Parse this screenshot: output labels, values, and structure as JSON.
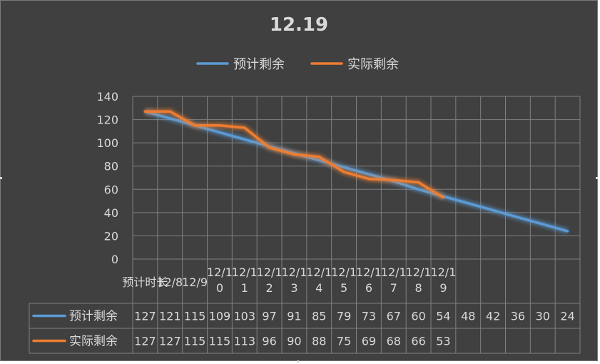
{
  "chart_data": {
    "type": "line",
    "title": "12.19",
    "categories": [
      "预计时长",
      "12/8",
      "12/9",
      "12/10",
      "12/11",
      "12/12",
      "12/13",
      "12/14",
      "12/15",
      "12/16",
      "12/17",
      "12/18",
      "12/19",
      "",
      "",
      "",
      "",
      ""
    ],
    "series": [
      {
        "name": "预计剩余",
        "color": "#5b9bd5",
        "values": [
          127,
          121,
          115,
          109,
          103,
          97,
          91,
          85,
          79,
          73,
          67,
          60,
          54,
          48,
          42,
          36,
          30,
          24
        ]
      },
      {
        "name": "实际剩余",
        "color": "#ed7d31",
        "values": [
          127,
          127,
          115,
          115,
          113,
          96,
          90,
          88,
          75,
          69,
          68,
          66,
          53,
          null,
          null,
          null,
          null,
          null
        ]
      }
    ],
    "ylim": [
      0,
      140
    ],
    "yticks": [
      0,
      20,
      40,
      60,
      80,
      100,
      120,
      140
    ],
    "grid": true,
    "legend_position": "top",
    "data_table": true
  }
}
